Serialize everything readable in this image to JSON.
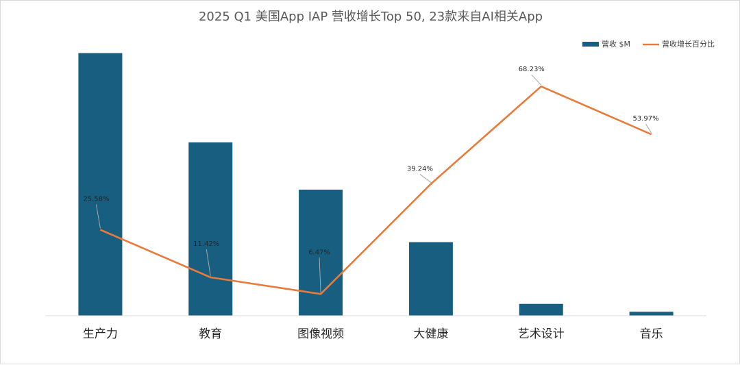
{
  "chart_data": {
    "type": "bar",
    "title": "2025 Q1 美国App IAP 营收增长Top 50, 23款来自AI相关App",
    "categories": [
      "生产力",
      "教育",
      "图像视频",
      "大健康",
      "艺术设计",
      "音乐"
    ],
    "series": [
      {
        "name": "营收 $M",
        "type": "bar",
        "axis": "left",
        "color": "#175e80",
        "values": [
          100,
          66,
          48,
          28,
          4.5,
          1.5
        ]
      },
      {
        "name": "营收增长百分比",
        "type": "line",
        "axis": "right",
        "color": "#e87b3a",
        "values": [
          25.58,
          11.42,
          6.47,
          39.24,
          68.23,
          53.97
        ],
        "labels": [
          "25.58%",
          "11.42%",
          "6.47%",
          "39.24%",
          "68.23%",
          "53.97%"
        ]
      }
    ],
    "ylim_left": [
      0,
      103
    ],
    "ylim_right": [
      0,
      80.5
    ],
    "grid": false,
    "legend_position": "top-right"
  }
}
